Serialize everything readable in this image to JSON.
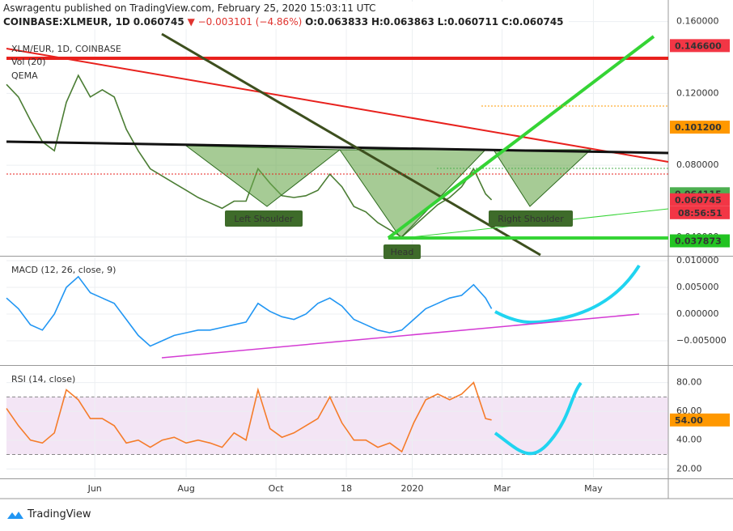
{
  "header": {
    "byline": "Aswragentu published on TradingView.com, February 25, 2020 15:03:11 UTC",
    "symbol": "COINBASE:XLMEUR, 1D",
    "last": "0.060745",
    "change": "▼ −0.003101 (−4.86%)",
    "open": "O:0.063833",
    "high": "H:0.063863",
    "low": "L:0.060711",
    "close": "C:0.060745"
  },
  "chart_data": [
    {
      "type": "line",
      "title": "XLM/EUR, 1D, COINBASE",
      "indicators": [
        "Vol (20)",
        "QEMA"
      ],
      "color": "#4b7d34",
      "x": [
        0,
        8,
        16,
        24,
        32,
        40,
        48,
        56,
        64,
        72,
        80,
        88,
        96,
        104,
        112,
        120,
        128,
        136,
        144,
        152,
        160,
        168,
        176,
        184,
        192,
        200,
        208,
        216,
        224,
        232,
        240,
        248,
        256,
        264,
        272,
        280,
        288,
        296,
        304,
        312,
        320,
        324
      ],
      "values": [
        0.125,
        0.118,
        0.105,
        0.093,
        0.088,
        0.115,
        0.13,
        0.118,
        0.122,
        0.118,
        0.1,
        0.088,
        0.078,
        0.074,
        0.07,
        0.066,
        0.062,
        0.059,
        0.056,
        0.06,
        0.06,
        0.078,
        0.07,
        0.063,
        0.062,
        0.063,
        0.066,
        0.075,
        0.068,
        0.057,
        0.054,
        0.048,
        0.044,
        0.04,
        0.046,
        0.052,
        0.058,
        0.062,
        0.068,
        0.078,
        0.064,
        0.0607
      ],
      "xlim": [
        0,
        442
      ],
      "ylim": [
        0.03,
        0.172
      ],
      "yticks": [
        {
          "value": 0.04,
          "label": "0.040000"
        },
        {
          "value": 0.08,
          "label": "0.080000"
        },
        {
          "value": 0.12,
          "label": "0.120000"
        },
        {
          "value": 0.16,
          "label": "0.160000"
        }
      ],
      "price_labels": [
        {
          "value": 0.1466,
          "label": "0.146600",
          "color": "#f23645"
        },
        {
          "value": 0.1012,
          "label": "0.101200",
          "color": "#ff9800"
        },
        {
          "value": 0.064115,
          "label": "0.064115",
          "color": "#4caf50"
        },
        {
          "value": 0.060745,
          "label": "0.060745",
          "color": "#f23645"
        },
        {
          "value": 0.037873,
          "label": "0.037873",
          "color": "#22c322"
        }
      ],
      "countdown": "08:56:51",
      "annotations": [
        "Left Shoulder",
        "Head",
        "Right Shoulder"
      ],
      "grid": true
    },
    {
      "type": "line",
      "title": "MACD (12, 26, close, 9)",
      "color": "#2196f3",
      "x": [
        0,
        8,
        16,
        24,
        32,
        40,
        48,
        56,
        64,
        72,
        80,
        88,
        96,
        104,
        112,
        120,
        128,
        136,
        144,
        152,
        160,
        168,
        176,
        184,
        192,
        200,
        208,
        216,
        224,
        232,
        240,
        248,
        256,
        264,
        272,
        280,
        288,
        296,
        304,
        312,
        320,
        324
      ],
      "values": [
        0.003,
        0.001,
        -0.002,
        -0.003,
        0.0,
        0.005,
        0.007,
        0.004,
        0.003,
        0.002,
        -0.001,
        -0.004,
        -0.006,
        -0.005,
        -0.004,
        -0.0035,
        -0.003,
        -0.003,
        -0.0025,
        -0.002,
        -0.0015,
        0.002,
        0.0005,
        -0.0005,
        -0.001,
        0.0,
        0.002,
        0.003,
        0.0015,
        -0.001,
        -0.002,
        -0.003,
        -0.0035,
        -0.003,
        -0.001,
        0.001,
        0.002,
        0.003,
        0.0035,
        0.0055,
        0.003,
        0.001
      ],
      "xlim": [
        0,
        442
      ],
      "ylim": [
        -0.0094,
        0.0106
      ],
      "yticks": [
        {
          "value": -0.005,
          "label": "−0.005000"
        },
        {
          "value": 0,
          "label": "0.000000"
        },
        {
          "value": 0.005,
          "label": "0.005000"
        },
        {
          "value": 0.01,
          "label": "0.010000"
        }
      ],
      "grid": true
    },
    {
      "type": "line",
      "title": "RSI (14, close)",
      "color": "#f57c2a",
      "x": [
        0,
        8,
        16,
        24,
        32,
        40,
        48,
        56,
        64,
        72,
        80,
        88,
        96,
        104,
        112,
        120,
        128,
        136,
        144,
        152,
        160,
        168,
        176,
        184,
        192,
        200,
        208,
        216,
        224,
        232,
        240,
        248,
        256,
        264,
        272,
        280,
        288,
        296,
        304,
        312,
        320,
        324
      ],
      "values": [
        62,
        50,
        40,
        38,
        45,
        75,
        68,
        55,
        55,
        50,
        38,
        40,
        35,
        40,
        42,
        38,
        40,
        38,
        35,
        45,
        40,
        75,
        48,
        42,
        45,
        50,
        55,
        70,
        52,
        40,
        40,
        35,
        38,
        32,
        52,
        68,
        72,
        68,
        72,
        80,
        55,
        54
      ],
      "xlim": [
        0,
        442
      ],
      "ylim": [
        14,
        91
      ],
      "band": [
        30,
        70
      ],
      "yticks": [
        {
          "value": 20,
          "label": "20.00"
        },
        {
          "value": 40,
          "label": "40.00"
        },
        {
          "value": 60,
          "label": "60.00"
        },
        {
          "value": 80,
          "label": "80.00"
        }
      ],
      "price_labels": [
        {
          "value": 54,
          "label": "54.00",
          "color": "#ff9800"
        }
      ],
      "xticks": [
        {
          "value": 59,
          "label": "Jun"
        },
        {
          "value": 120,
          "label": "Aug"
        },
        {
          "value": 180,
          "label": "Oct"
        },
        {
          "value": 227,
          "label": "18"
        },
        {
          "value": 271,
          "label": "2020"
        },
        {
          "value": 331,
          "label": "Mar"
        },
        {
          "value": 392,
          "label": "May"
        }
      ],
      "grid": true
    }
  ],
  "footer": {
    "brand": "TradingView"
  }
}
